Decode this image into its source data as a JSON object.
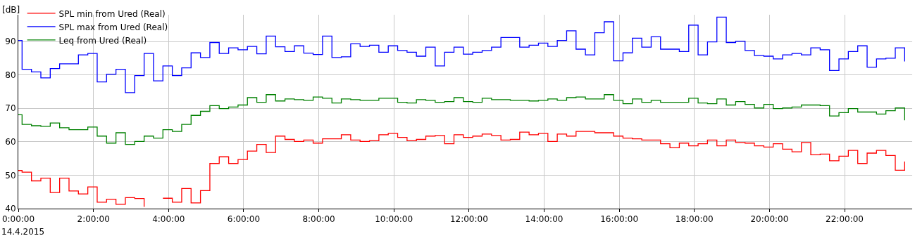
{
  "chart_data": {
    "type": "step",
    "ylabel": "[dB]",
    "annotations": [
      "14.4.2015"
    ],
    "x": [
      0,
      0.1,
      0.35,
      0.6,
      0.85,
      1.1,
      1.35,
      1.6,
      1.85,
      2.1,
      2.35,
      2.6,
      2.85,
      3.1,
      3.35,
      3.6,
      3.85,
      4.1,
      4.35,
      4.6,
      4.85,
      5.1,
      5.35,
      5.6,
      5.85,
      6.1,
      6.35,
      6.6,
      6.85,
      7.1,
      7.35,
      7.6,
      7.85,
      8.1,
      8.35,
      8.6,
      8.85,
      9.1,
      9.35,
      9.6,
      9.85,
      10.1,
      10.35,
      10.6,
      10.85,
      11.1,
      11.35,
      11.6,
      11.85,
      12.1,
      12.35,
      12.6,
      12.85,
      13.1,
      13.35,
      13.6,
      13.85,
      14.1,
      14.35,
      14.6,
      14.85,
      15.1,
      15.35,
      15.6,
      15.85,
      16.1,
      16.35,
      16.6,
      16.85,
      17.1,
      17.35,
      17.6,
      17.85,
      18.1,
      18.35,
      18.6,
      18.85,
      19.1,
      19.35,
      19.6,
      19.85,
      20.1,
      20.35,
      20.6,
      20.85,
      21.1,
      21.35,
      21.6,
      21.85,
      22.1,
      22.35,
      22.6,
      22.85,
      23.1,
      23.35,
      23.6
    ],
    "series": [
      {
        "name": "SPL min from Ured (Real)",
        "color": "#ff0000",
        "values": [
          51.4,
          50.9,
          48.3,
          49.1,
          44.8,
          49.1,
          45.3,
          44.4,
          46.5,
          41.9,
          42.8,
          41.3,
          43.3,
          43.0,
          40.5,
          null,
          43.1,
          41.9,
          46.0,
          41.7,
          45.4,
          53.5,
          55.5,
          53.5,
          54.7,
          57.2,
          59.2,
          56.8,
          61.7,
          60.7,
          60.1,
          60.5,
          59.6,
          60.9,
          60.9,
          62.1,
          60.5,
          60.1,
          60.3,
          62.1,
          62.5,
          61.3,
          60.3,
          60.7,
          61.7,
          61.9,
          59.4,
          62.1,
          61.3,
          61.7,
          62.3,
          61.9,
          60.5,
          60.7,
          62.9,
          62.1,
          62.5,
          60.1,
          62.3,
          61.7,
          63.1,
          63.1,
          62.7,
          62.7,
          61.7,
          61.1,
          60.9,
          60.5,
          60.5,
          59.4,
          58.2,
          59.6,
          58.8,
          59.4,
          60.5,
          58.8,
          60.5,
          59.8,
          59.6,
          58.8,
          58.4,
          59.4,
          57.8,
          57.0,
          59.8,
          56.1,
          56.3,
          54.3,
          55.7,
          57.4,
          53.5,
          56.6,
          57.4,
          55.9,
          51.5,
          54.1
        ]
      },
      {
        "name": "SPL max from Ured (Real)",
        "color": "#0000ff",
        "values": [
          90.3,
          81.7,
          80.9,
          79.1,
          81.9,
          83.3,
          83.3,
          86.0,
          86.4,
          77.9,
          80.2,
          81.7,
          74.7,
          79.8,
          86.4,
          78.2,
          82.7,
          79.8,
          82.1,
          86.6,
          85.2,
          89.7,
          86.4,
          88.1,
          87.5,
          88.5,
          86.3,
          91.6,
          88.4,
          87.0,
          88.7,
          86.5,
          86.1,
          91.6,
          85.2,
          85.4,
          89.3,
          88.5,
          88.9,
          86.8,
          88.7,
          87.3,
          86.8,
          85.6,
          88.3,
          82.7,
          86.8,
          88.3,
          86.2,
          86.8,
          87.3,
          88.3,
          91.2,
          91.2,
          88.3,
          88.9,
          89.5,
          88.5,
          90.3,
          93.2,
          87.7,
          86.0,
          92.6,
          95.9,
          84.2,
          86.6,
          91.0,
          88.3,
          91.4,
          87.7,
          87.7,
          87.0,
          94.9,
          86.0,
          89.9,
          97.3,
          89.7,
          90.1,
          87.3,
          85.8,
          85.6,
          84.8,
          86.0,
          86.4,
          86.0,
          88.1,
          87.5,
          81.3,
          84.8,
          87.0,
          88.7,
          82.3,
          84.8,
          85.0,
          88.1,
          84.0
        ]
      },
      {
        "name": "Leq from Ured (Real)",
        "color": "#008000",
        "values": [
          68.1,
          65.2,
          64.8,
          64.6,
          65.6,
          64.2,
          63.6,
          63.6,
          64.4,
          61.7,
          59.6,
          62.7,
          59.2,
          60.1,
          61.7,
          61.1,
          63.6,
          63.1,
          65.2,
          67.9,
          69.1,
          70.8,
          69.9,
          70.4,
          71.0,
          73.2,
          71.8,
          74.1,
          72.2,
          72.8,
          72.6,
          72.4,
          73.4,
          73.0,
          71.6,
          72.8,
          72.6,
          72.4,
          72.4,
          73.0,
          73.0,
          71.8,
          71.6,
          72.6,
          72.4,
          71.8,
          72.0,
          73.2,
          72.0,
          71.8,
          73.0,
          72.6,
          72.6,
          72.4,
          72.4,
          72.2,
          72.4,
          72.8,
          72.4,
          73.2,
          73.4,
          72.8,
          72.8,
          74.1,
          72.4,
          71.4,
          72.8,
          71.8,
          72.4,
          71.8,
          71.8,
          71.8,
          73.0,
          71.6,
          71.4,
          72.8,
          71.0,
          72.0,
          71.2,
          70.1,
          71.2,
          69.9,
          70.1,
          70.4,
          71.0,
          71.0,
          70.8,
          67.7,
          68.7,
          69.9,
          68.9,
          68.9,
          68.3,
          69.3,
          70.1,
          66.4
        ]
      }
    ],
    "xlim": [
      0,
      23.8
    ],
    "xticks": [
      {
        "value": 0,
        "label": "0:00:00"
      },
      {
        "value": 2,
        "label": "2:00:00"
      },
      {
        "value": 4,
        "label": "4:00:00"
      },
      {
        "value": 6,
        "label": "6:00:00"
      },
      {
        "value": 8,
        "label": "8:00:00"
      },
      {
        "value": 10,
        "label": "10:00:00"
      },
      {
        "value": 12,
        "label": "12:00:00"
      },
      {
        "value": 14,
        "label": "14:00:00"
      },
      {
        "value": 16,
        "label": "16:00:00"
      },
      {
        "value": 18,
        "label": "18:00:00"
      },
      {
        "value": 20,
        "label": "20:00:00"
      },
      {
        "value": 22,
        "label": "22:00:00"
      }
    ],
    "ylim": [
      40,
      98
    ],
    "yticks": [
      40,
      50,
      60,
      70,
      80,
      90
    ],
    "grid": true,
    "legend": "top left",
    "line_style": "solid"
  }
}
